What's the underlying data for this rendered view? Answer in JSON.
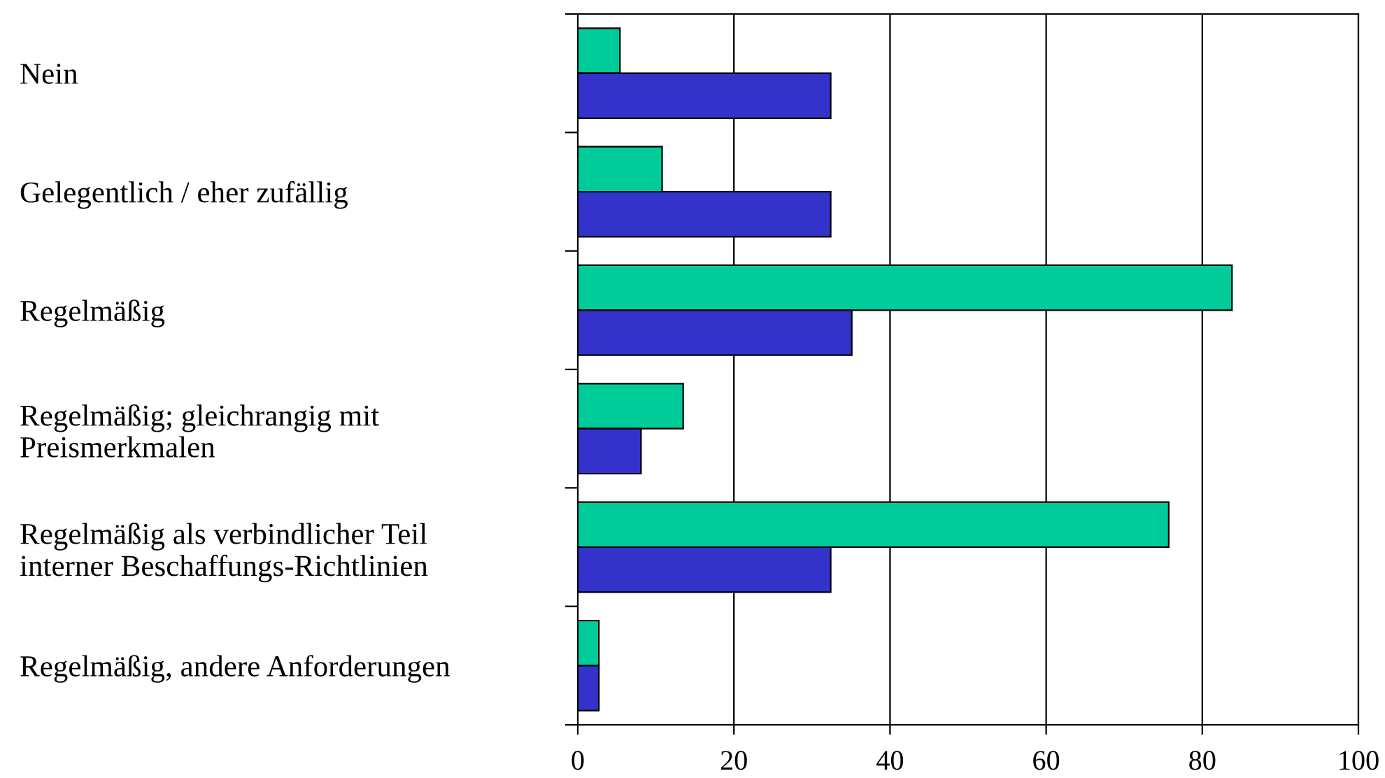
{
  "chart_data": {
    "type": "bar",
    "orientation": "horizontal",
    "categories": [
      "Nein",
      "Gelegentlich / eher zufällig",
      "Regelmäßig",
      "Regelmäßig; gleichrangig mit\nPreismerkmalen",
      "Regelmäßig als verbindlicher Teil\ninterner Beschaffungs-Richtlinien",
      "Regelmäßig, andere Anforderungen"
    ],
    "series": [
      {
        "color": "#00cc99",
        "values": [
          5.4,
          10.8,
          83.8,
          13.5,
          75.7,
          2.7
        ]
      },
      {
        "color": "#3333cc",
        "values": [
          32.4,
          32.4,
          35.1,
          8.1,
          32.4,
          2.7
        ]
      }
    ],
    "xlim": [
      0,
      100
    ],
    "xticks": [
      0,
      20,
      40,
      60,
      80,
      100
    ],
    "grid": "x"
  }
}
